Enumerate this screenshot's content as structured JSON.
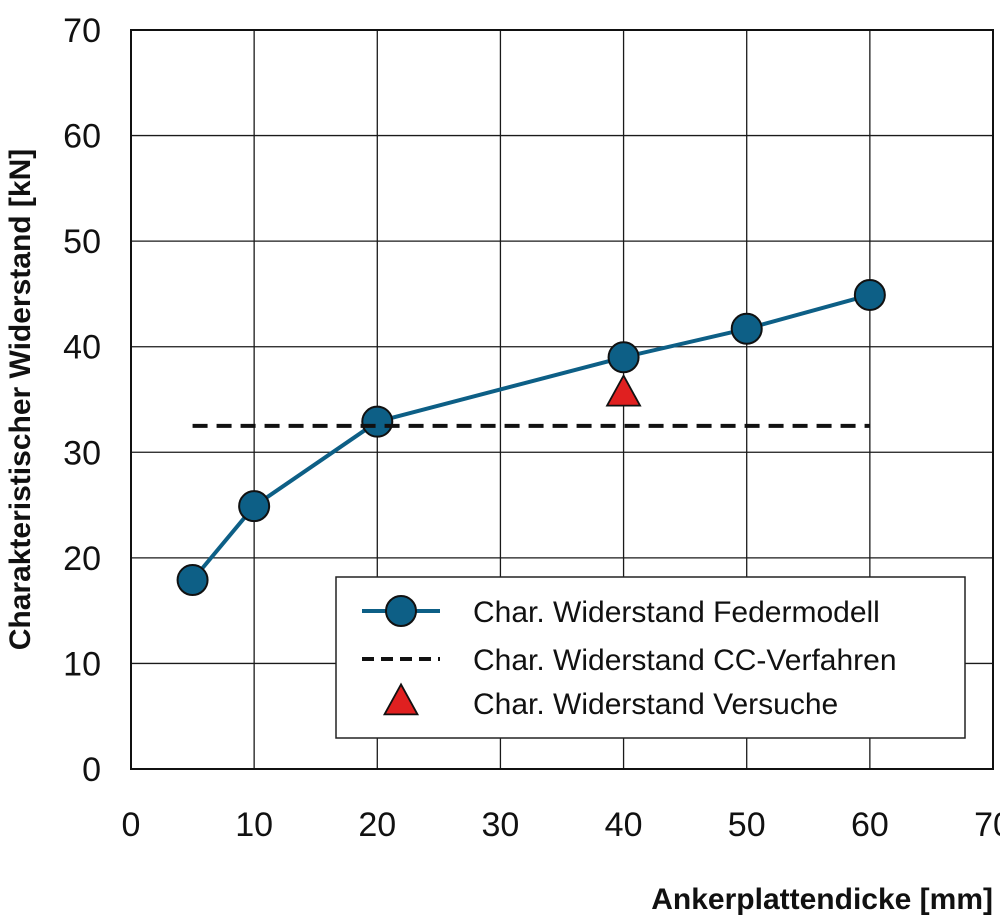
{
  "chart_data": {
    "type": "line",
    "xlabel": "Ankerplattendicke [mm]",
    "ylabel": "Charakteristischer Widerstand [kN]",
    "xlim": [
      0,
      70
    ],
    "ylim": [
      0,
      70
    ],
    "xticks": [
      0,
      10,
      20,
      30,
      40,
      50,
      60,
      70
    ],
    "yticks": [
      0,
      10,
      20,
      30,
      40,
      50,
      60,
      70
    ],
    "grid": true,
    "legend_position": "bottom-right",
    "series": [
      {
        "name": "Char. Widerstand Federmodell",
        "kind": "line-with-markers",
        "marker": "circle",
        "color": "#0d5f86",
        "x": [
          5,
          10,
          20,
          40,
          50,
          60
        ],
        "y": [
          17.9,
          24.9,
          32.9,
          39.0,
          41.7,
          44.9
        ]
      },
      {
        "name": "Char. Widerstand CC-Verfahren",
        "kind": "dashed-line",
        "color": "#111111",
        "x": [
          5,
          60
        ],
        "y": [
          32.5,
          32.5
        ]
      },
      {
        "name": "Char. Widerstand Versuche",
        "kind": "marker",
        "marker": "triangle",
        "color": "#e02020",
        "x": [
          40
        ],
        "y": [
          35.5
        ]
      }
    ]
  }
}
